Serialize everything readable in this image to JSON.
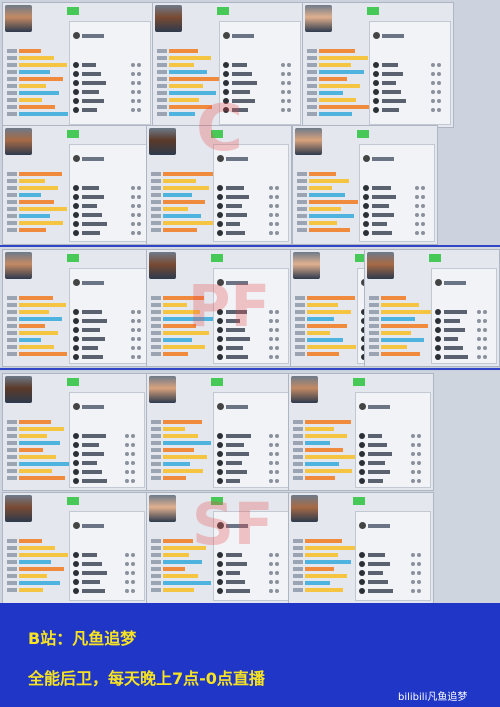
{
  "watermarks": {
    "c": "C",
    "pf": "PF",
    "sf": "SF"
  },
  "colors": {
    "accent_green": "#47c957",
    "bar_yellow": "#f5c542",
    "bar_orange": "#f08a3c",
    "footer_blue": "#1f36c6",
    "footer_text": "#f7e322"
  },
  "footer": {
    "line1": "B站：凡鱼追梦",
    "line2": "全能后卫，每天晚上7点-0点直播",
    "brand": "bilibili凡鱼追梦"
  }
}
